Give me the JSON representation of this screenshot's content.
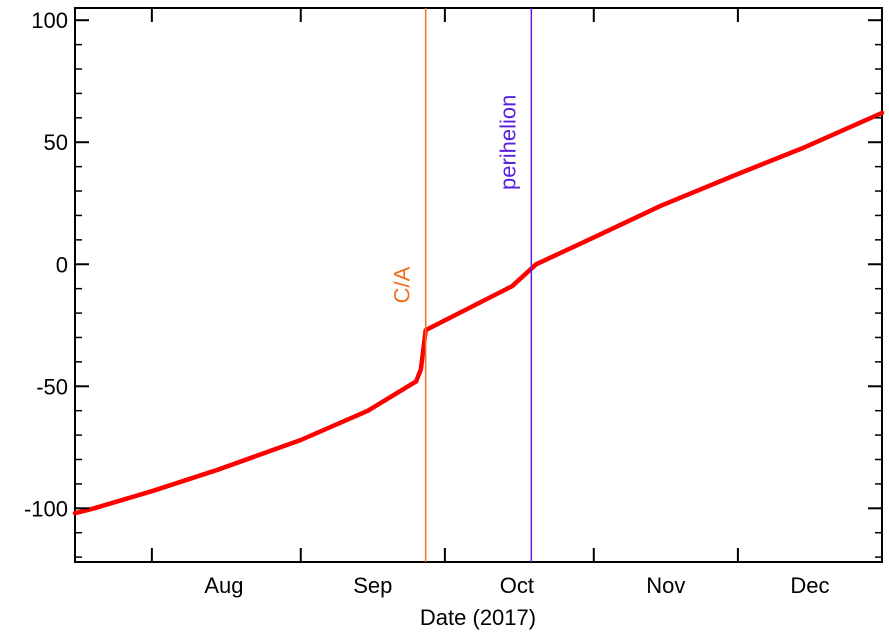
{
  "chart_data": {
    "type": "line",
    "xlabel": "Date (2017)",
    "ylabel": "",
    "xlim": [
      "2017-07-16",
      "2017-12-31"
    ],
    "ylim": [
      -122,
      105
    ],
    "yticks": [
      100,
      50,
      0,
      -50,
      -100
    ],
    "ytick_labels": [
      "100",
      "50",
      "0",
      "-50",
      "-100"
    ],
    "xticks": [
      "2017-08-01",
      "2017-09-01",
      "2017-10-01",
      "2017-11-01",
      "2017-12-01"
    ],
    "xtick_labels": [
      "Aug",
      "Sep",
      "Oct",
      "Nov",
      "Dec"
    ],
    "grid": false,
    "series": [
      {
        "color": "#ff0000",
        "x": [
          "2017-07-16",
          "2017-07-20",
          "2017-08-01",
          "2017-08-15",
          "2017-09-01",
          "2017-09-15",
          "2017-09-25",
          "2017-09-26",
          "2017-09-27",
          "2017-10-15",
          "2017-10-20",
          "2017-11-01",
          "2017-11-15",
          "2017-12-01",
          "2017-12-15",
          "2017-12-31"
        ],
        "values": [
          -102,
          -100,
          -93,
          -84,
          -72,
          -60,
          -48,
          -43,
          -27,
          -9,
          0,
          11,
          24,
          37,
          48,
          62
        ]
      }
    ],
    "annotations": [
      {
        "label": "C/A",
        "x": "2017-09-27",
        "color": "#f07020"
      },
      {
        "label": "perihelion",
        "x": "2017-10-19",
        "color": "#5a20e0"
      }
    ]
  }
}
